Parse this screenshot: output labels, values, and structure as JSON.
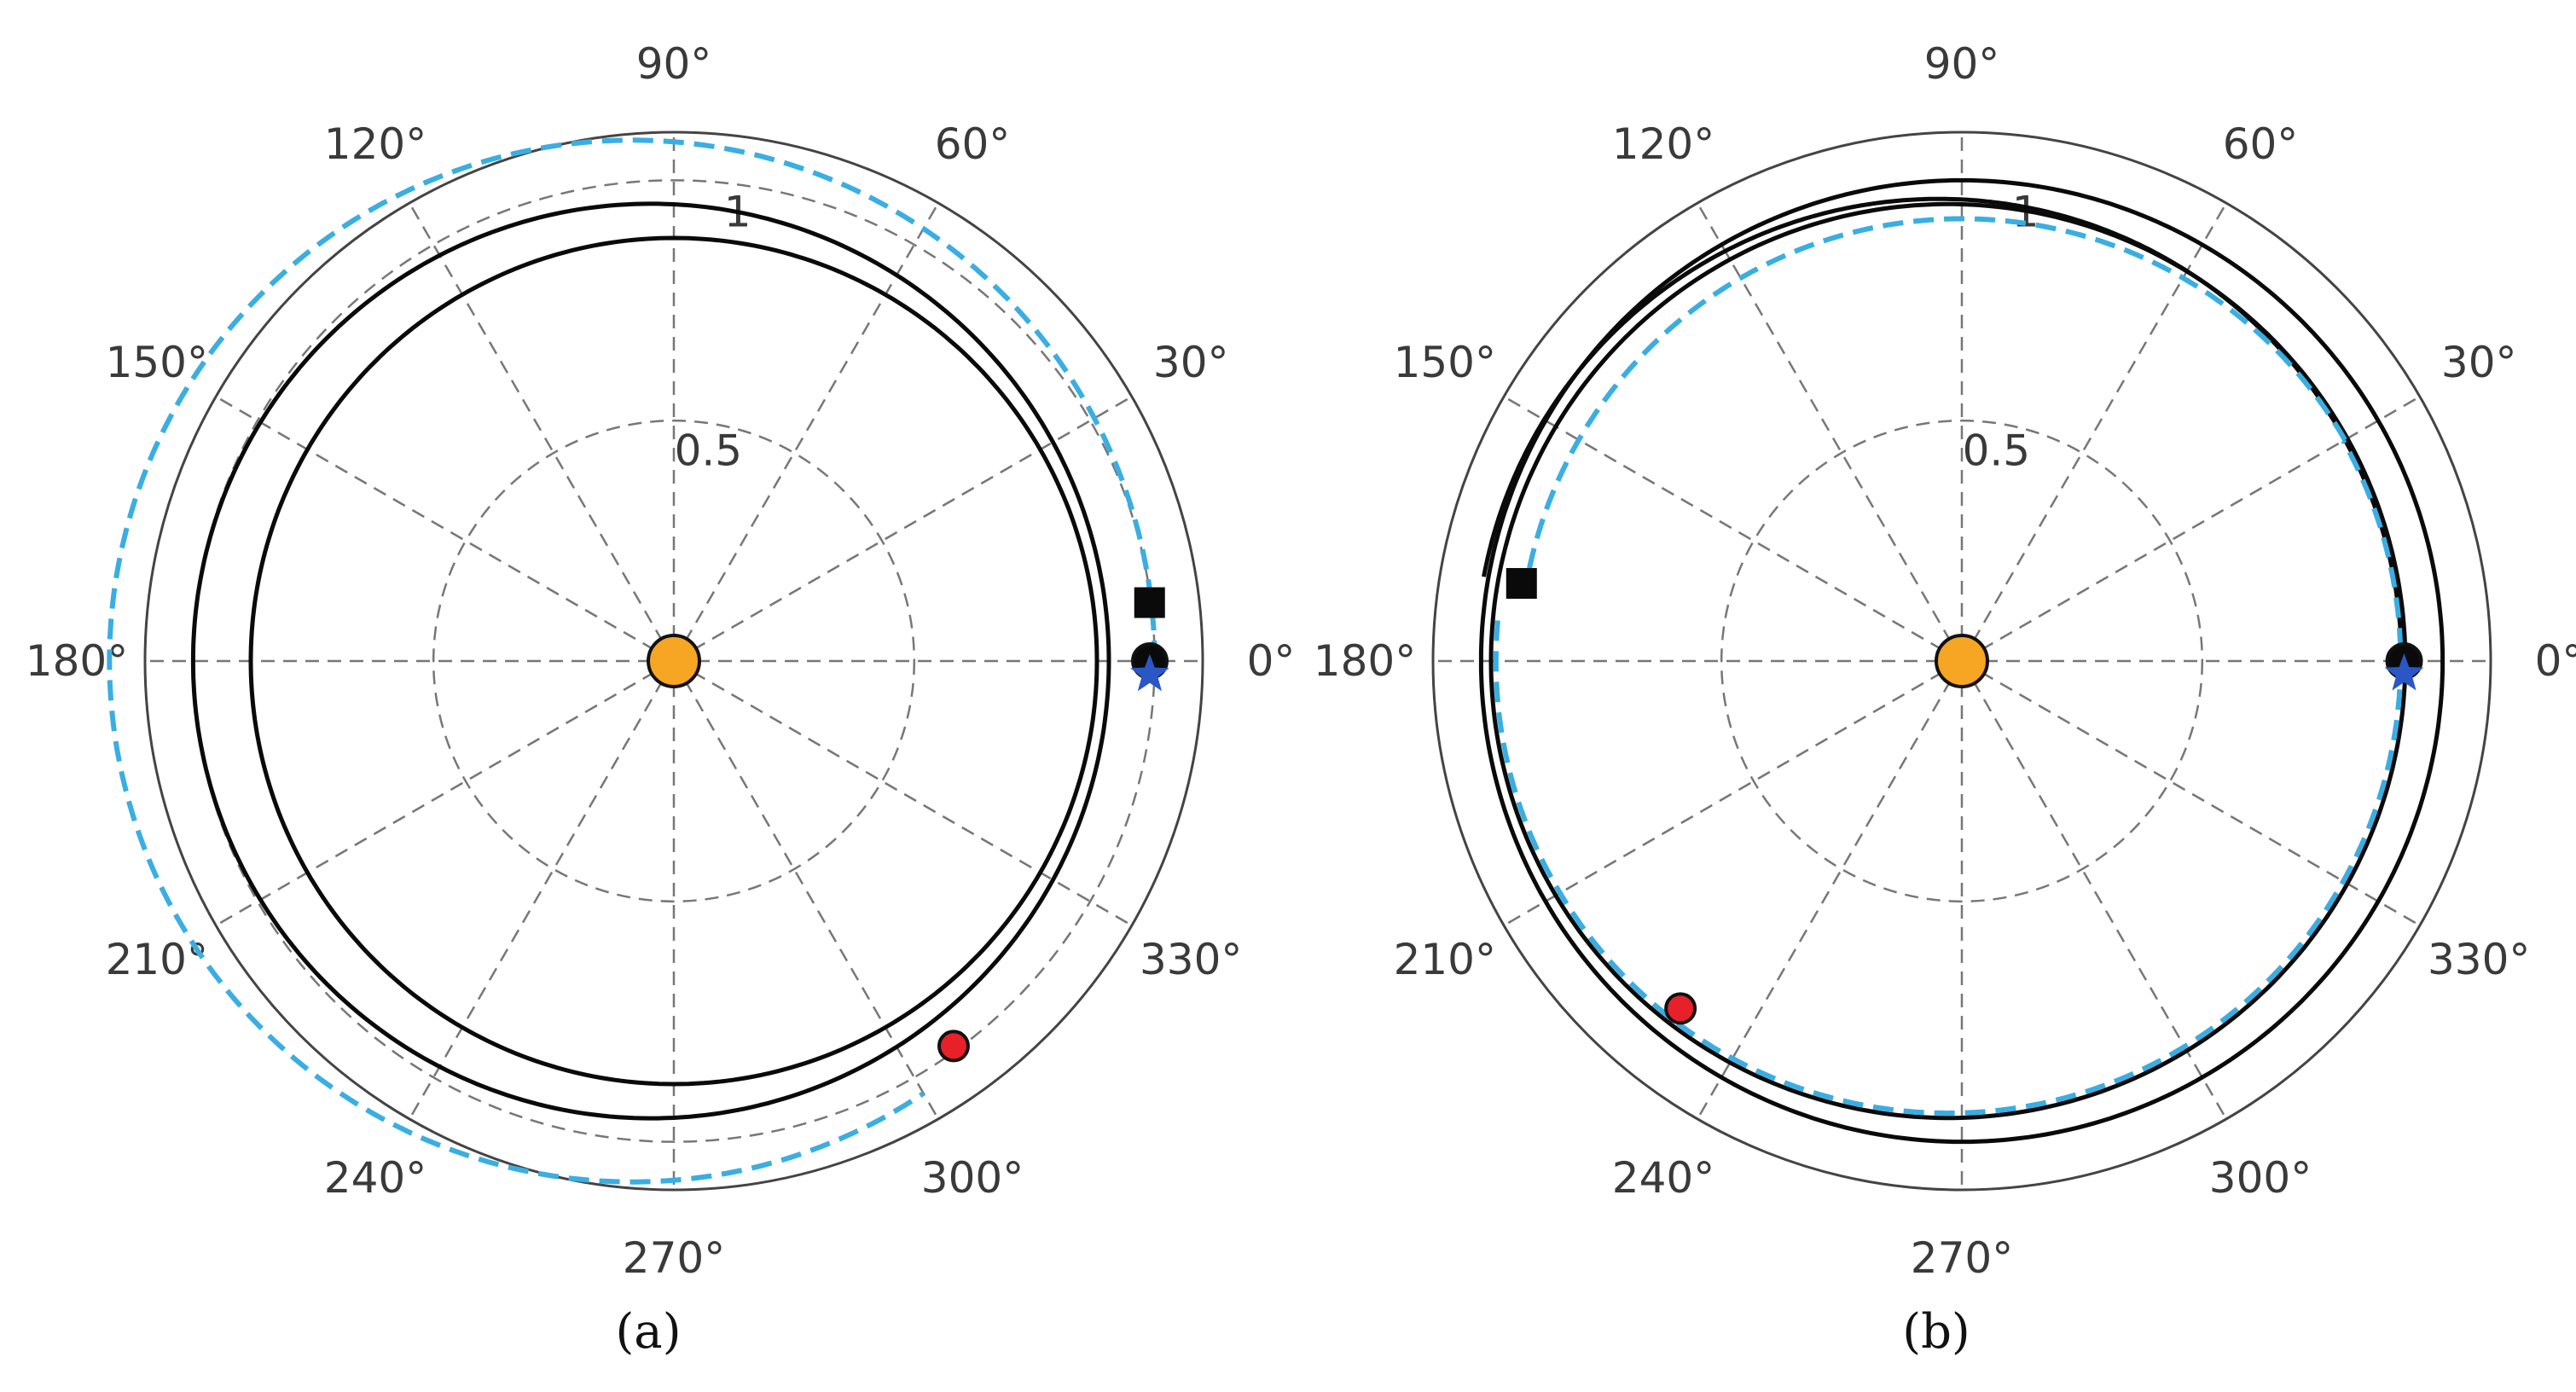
{
  "colors": {
    "ring": "#444444",
    "grid": "#777777",
    "solid": "#0a0a0a",
    "dashed": "#3aaee2",
    "sun": "#f6a623",
    "red_marker": "#e8202a",
    "black_marker": "#0a0a0a"
  },
  "angular_ticks": [
    "0°",
    "30°",
    "60°",
    "90°",
    "120°",
    "150°",
    "180°",
    "210°",
    "240°",
    "270°",
    "300°",
    "330°"
  ],
  "chart_data": [
    {
      "type": "polar",
      "panel_label": "(a)",
      "rlim": [
        0,
        1.1
      ],
      "radial_ticks": [
        0.5,
        1
      ],
      "radial_tick_labels": [
        "0.5",
        "1"
      ],
      "radial_label_angle_deg": 83,
      "grid": true,
      "center_marker": {
        "shape": "circle",
        "color": "#f6a623"
      },
      "orbits": [
        {
          "style": "solid",
          "color": "#0a0a0a",
          "eccentricity": 0.0,
          "p": 0.88,
          "periapsis_deg": 0
        },
        {
          "style": "solid",
          "color": "#0a0a0a",
          "eccentricity": 0.05,
          "p": 0.95,
          "periapsis_deg": 0
        },
        {
          "style": "dashed",
          "color": "#3aaee2",
          "eccentricity": 0.08,
          "p": 1.08,
          "periapsis_deg": 0,
          "theta_range_deg": [
            0,
            300
          ]
        }
      ],
      "markers": [
        {
          "shape": "circle",
          "color": "#0a0a0a",
          "r": 0.99,
          "theta_deg": 0
        },
        {
          "shape": "star",
          "color": "#2a56c6",
          "r": 0.99,
          "theta_deg": 359
        },
        {
          "shape": "square",
          "color": "#0a0a0a",
          "r": 0.997,
          "theta_deg": 7
        },
        {
          "shape": "circle",
          "color": "#e8202a",
          "r": 0.99,
          "theta_deg": 306
        }
      ]
    },
    {
      "type": "polar",
      "panel_label": "(b)",
      "rlim": [
        0,
        1.1
      ],
      "radial_ticks": [
        0.5,
        1
      ],
      "radial_tick_labels": [
        "0.5",
        "1"
      ],
      "radial_label_angle_deg": 83,
      "grid": true,
      "center_marker": {
        "shape": "circle",
        "color": "#f6a623"
      },
      "orbits": [
        {
          "style": "solid",
          "color": "#0a0a0a",
          "eccentricity": 0.0,
          "p": 1.0,
          "periapsis_deg": 0
        },
        {
          "style": "solid",
          "color": "#0a0a0a",
          "eccentricity": 0.05,
          "p": 0.96,
          "periapsis_deg": 0,
          "theta_range_deg": [
            0,
            170
          ]
        },
        {
          "style": "solid",
          "color": "#0a0a0a",
          "eccentricity": 0.03,
          "p": 0.95,
          "periapsis_deg": 0
        },
        {
          "style": "dashed",
          "color": "#3aaee2",
          "eccentricity": 0.03,
          "p": 0.94,
          "periapsis_deg": 0,
          "theta_range_deg": [
            -185,
            30
          ]
        },
        {
          "style": "dashed",
          "color": "#3aaee2",
          "eccentricity": 0.0,
          "p": 0.92,
          "periapsis_deg": 0,
          "theta_range_deg": [
            30,
            170
          ]
        }
      ],
      "markers": [
        {
          "shape": "circle",
          "color": "#0a0a0a",
          "r": 0.92,
          "theta_deg": 0
        },
        {
          "shape": "star",
          "color": "#2a56c6",
          "r": 0.92,
          "theta_deg": 359
        },
        {
          "shape": "square",
          "color": "#0a0a0a",
          "r": 0.93,
          "theta_deg": 170
        },
        {
          "shape": "circle",
          "color": "#e8202a",
          "r": 0.93,
          "theta_deg": 231
        }
      ]
    }
  ]
}
